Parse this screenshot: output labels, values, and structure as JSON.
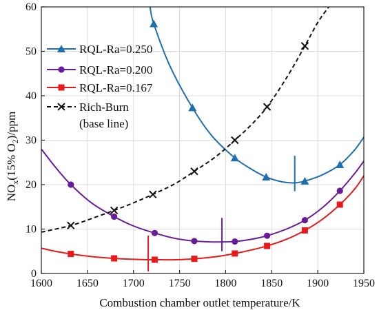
{
  "chart_data": {
    "type": "line",
    "title": "",
    "xlabel": "Combustion chamber outlet temperature/K",
    "ylabel": {
      "prefix": "NO",
      "sub1": "x",
      "middle": "(15% O",
      "sub2": "2",
      "suffix": ")/ppm"
    },
    "xlim": [
      1600,
      1950
    ],
    "ylim": [
      0,
      60
    ],
    "xticks": [
      1600,
      1650,
      1700,
      1750,
      1800,
      1850,
      1900,
      1950
    ],
    "yticks": [
      0,
      10,
      20,
      30,
      40,
      50,
      60
    ],
    "xtick_labels": [
      "1600",
      "1650",
      "1700",
      "1750",
      "1800",
      "1850",
      "1900",
      "1950"
    ],
    "ytick_labels": [
      "0",
      "10",
      "20",
      "30",
      "40",
      "50",
      "60"
    ],
    "grid": true,
    "legend_position": "top-left",
    "series": [
      {
        "name": "RQL-Ra=0.250",
        "color": "#1f6fb0",
        "marker": "triangle",
        "line": "solid",
        "x": [
          1722,
          1764,
          1810,
          1844,
          1886,
          1924
        ],
        "y": [
          56.2,
          37.3,
          26.0,
          21.7,
          20.8,
          24.5
        ],
        "curve": [
          [
            1718,
            60
          ],
          [
            1722,
            56.2
          ],
          [
            1740,
            46.5
          ],
          [
            1764,
            37.3
          ],
          [
            1785,
            31.0
          ],
          [
            1810,
            26.0
          ],
          [
            1827,
            23.6
          ],
          [
            1844,
            21.7
          ],
          [
            1862,
            20.6
          ],
          [
            1875,
            20.4
          ],
          [
            1886,
            20.8
          ],
          [
            1905,
            22.2
          ],
          [
            1924,
            24.5
          ],
          [
            1940,
            27.8
          ],
          [
            1950,
            30.7
          ]
        ],
        "marked_min": {
          "x": 1875,
          "y_from": 18.5,
          "y_to": 26.5
        }
      },
      {
        "name": "RQL-Ra=0.200",
        "color": "#6a1b9a",
        "marker": "circle",
        "line": "solid",
        "x": [
          1632,
          1679,
          1723,
          1766,
          1810,
          1845,
          1886,
          1924
        ],
        "y": [
          20.0,
          12.8,
          9.1,
          7.3,
          7.2,
          8.5,
          12.0,
          18.6
        ],
        "curve": [
          [
            1600,
            28.0
          ],
          [
            1615,
            24.0
          ],
          [
            1632,
            20.0
          ],
          [
            1655,
            15.8
          ],
          [
            1679,
            12.8
          ],
          [
            1700,
            10.7
          ],
          [
            1723,
            9.1
          ],
          [
            1745,
            7.9
          ],
          [
            1766,
            7.3
          ],
          [
            1785,
            7.1
          ],
          [
            1796,
            7.1
          ],
          [
            1810,
            7.2
          ],
          [
            1828,
            7.7
          ],
          [
            1845,
            8.5
          ],
          [
            1866,
            10.0
          ],
          [
            1886,
            12.0
          ],
          [
            1905,
            14.8
          ],
          [
            1924,
            18.6
          ],
          [
            1940,
            22.5
          ],
          [
            1950,
            25.3
          ]
        ],
        "marked_min": {
          "x": 1796,
          "y_from": 5.0,
          "y_to": 12.5
        }
      },
      {
        "name": "RQL-Ra=0.167",
        "color": "#e8191b",
        "marker": "square",
        "line": "solid",
        "x": [
          1632,
          1679,
          1723,
          1766,
          1810,
          1845,
          1886,
          1924
        ],
        "y": [
          4.4,
          3.4,
          3.1,
          3.3,
          4.5,
          6.2,
          9.7,
          15.5
        ],
        "curve": [
          [
            1600,
            5.7
          ],
          [
            1615,
            5.0
          ],
          [
            1632,
            4.4
          ],
          [
            1655,
            3.8
          ],
          [
            1679,
            3.4
          ],
          [
            1700,
            3.2
          ],
          [
            1716,
            3.1
          ],
          [
            1723,
            3.1
          ],
          [
            1745,
            3.1
          ],
          [
            1766,
            3.3
          ],
          [
            1790,
            3.8
          ],
          [
            1810,
            4.5
          ],
          [
            1828,
            5.3
          ],
          [
            1845,
            6.2
          ],
          [
            1866,
            7.7
          ],
          [
            1886,
            9.7
          ],
          [
            1905,
            12.2
          ],
          [
            1924,
            15.5
          ],
          [
            1940,
            19.0
          ],
          [
            1950,
            22.0
          ]
        ],
        "marked_min": {
          "x": 1716,
          "y_from": 0.5,
          "y_to": 8.5
        }
      },
      {
        "name": "Rich-Burn",
        "name_line2": "(base line)",
        "color": "#111111",
        "marker": "x",
        "line": "dashed",
        "x": [
          1632,
          1679,
          1721,
          1766,
          1810,
          1845,
          1886
        ],
        "y": [
          10.8,
          14.2,
          17.8,
          23.0,
          30.0,
          37.5,
          51.2
        ],
        "curve": [
          [
            1600,
            9.3
          ],
          [
            1632,
            10.8
          ],
          [
            1655,
            12.4
          ],
          [
            1679,
            14.2
          ],
          [
            1700,
            15.9
          ],
          [
            1721,
            17.8
          ],
          [
            1745,
            20.2
          ],
          [
            1766,
            23.0
          ],
          [
            1790,
            26.4
          ],
          [
            1810,
            30.0
          ],
          [
            1828,
            33.5
          ],
          [
            1845,
            37.5
          ],
          [
            1866,
            44.0
          ],
          [
            1886,
            51.2
          ],
          [
            1900,
            56.5
          ],
          [
            1912,
            60.0
          ]
        ]
      }
    ]
  }
}
